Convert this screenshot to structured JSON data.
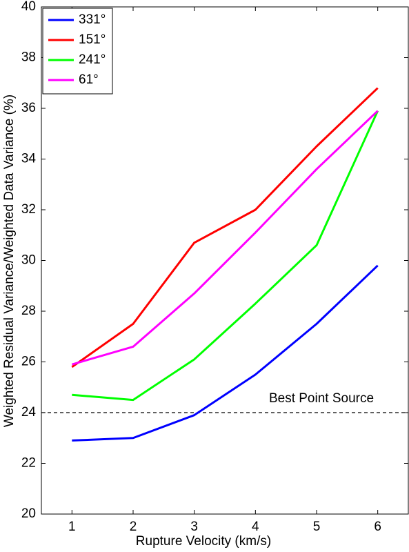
{
  "chart_data": {
    "type": "line",
    "x_label": "Rupture Velocity (km/s)",
    "y_label": "Weighted Residual Variance/Weighted Data Variance (%)",
    "x": [
      1,
      2,
      3,
      4,
      5,
      6
    ],
    "xlim": [
      0.5,
      6.5
    ],
    "xticks": [
      1,
      2,
      3,
      4,
      5,
      6
    ],
    "ylim": [
      20,
      40
    ],
    "yticks": [
      20,
      22,
      24,
      26,
      28,
      30,
      32,
      34,
      36,
      38,
      40
    ],
    "grid": false,
    "legend": "upper left",
    "series": [
      {
        "name": "331°",
        "color": "#0000ff",
        "values": [
          22.9,
          23.0,
          23.9,
          25.5,
          27.5,
          29.8
        ]
      },
      {
        "name": "151°",
        "color": "#ff0000",
        "values": [
          25.8,
          27.5,
          30.7,
          32.0,
          34.5,
          36.8
        ]
      },
      {
        "name": "241°",
        "color": "#00ff00",
        "values": [
          24.7,
          24.5,
          26.1,
          28.3,
          30.6,
          35.9
        ]
      },
      {
        "name": "61°",
        "color": "#ff00ff",
        "values": [
          25.9,
          26.6,
          28.7,
          31.1,
          33.6,
          35.9
        ]
      }
    ],
    "reference_line": {
      "value": 24,
      "label": "Best Point Source"
    }
  }
}
